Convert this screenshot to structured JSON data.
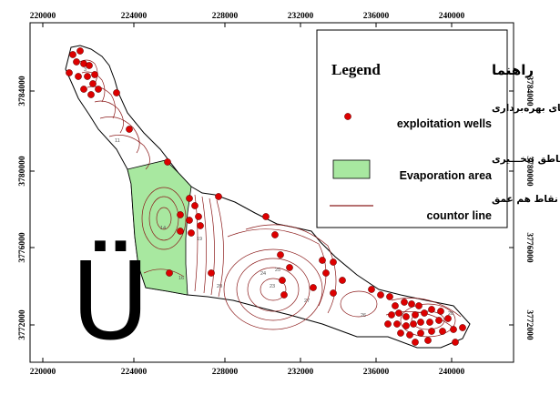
{
  "map": {
    "x_ticks": [
      "220000",
      "224000",
      "228000",
      "232000",
      "236000",
      "240000"
    ],
    "y_ticks": [
      "3784000",
      "3780000",
      "3776000",
      "3772000"
    ],
    "overlay_glyph": "Ü",
    "contour_labels": [
      "3",
      "4",
      "11",
      "14",
      "16",
      "19",
      "20",
      "23",
      "24",
      "25",
      "26",
      "27",
      "28"
    ]
  },
  "legend": {
    "title_en": "Legend",
    "title_fa": "راهنما",
    "items": [
      {
        "label_fa": "چاه‌های بهره‌برداری",
        "label_en": "exploitation wells",
        "symbol": "dot"
      },
      {
        "label_fa": "منـــاطق تبخـــیری",
        "label_en": "Evaporation area",
        "symbol": "green-box"
      },
      {
        "label_fa": "نقاط هم عمق",
        "label_en": "countor line",
        "symbol": "brown-line"
      }
    ]
  },
  "colors": {
    "well": "#dd0000",
    "evaporation": "#a8e8a0",
    "contour": "#8b1a1a",
    "frame": "#000000"
  }
}
